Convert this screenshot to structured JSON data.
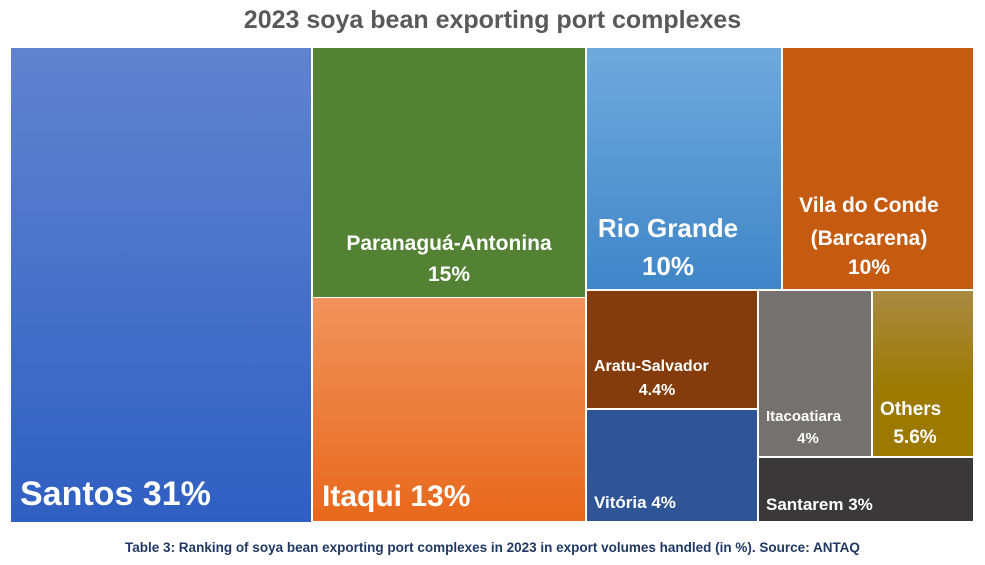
{
  "chart_data": {
    "type": "treemap",
    "title": "2023 soya bean exporting port complexes",
    "caption": "Table 3: Ranking of soya bean exporting port complexes in 2023 in export volumes handled (in %). Source: ANTAQ",
    "unit": "%",
    "items": [
      {
        "name": "Santos",
        "value": 31,
        "label": "31%",
        "color": "#4472c4"
      },
      {
        "name": "Paranaguá-Antonina",
        "value": 15,
        "label": "15%",
        "color": "#548235"
      },
      {
        "name": "Itaqui",
        "value": 13,
        "label": "13%",
        "color": "#ed7d31"
      },
      {
        "name": "Rio Grande",
        "value": 10,
        "label": "10%",
        "color": "#5b9bd5"
      },
      {
        "name": "Vila do Conde",
        "name2": "(Barcarena)",
        "value": 10,
        "label": "10%",
        "color": "#c55a11"
      },
      {
        "name": "Aratu-Salvador",
        "value": 4.4,
        "label": "4.4%",
        "color": "#843c0c"
      },
      {
        "name": "Vitória",
        "value": 4,
        "label": "4%",
        "color": "#2f5597"
      },
      {
        "name": "Itacoatiara",
        "value": 4,
        "label": "4%",
        "color": "#767171"
      },
      {
        "name": "Others",
        "value": 5.6,
        "label": "5.6%",
        "color": "#9c7a00"
      },
      {
        "name": "Santarem",
        "value": 3,
        "label": "3%",
        "color": "#3a3838"
      }
    ]
  }
}
